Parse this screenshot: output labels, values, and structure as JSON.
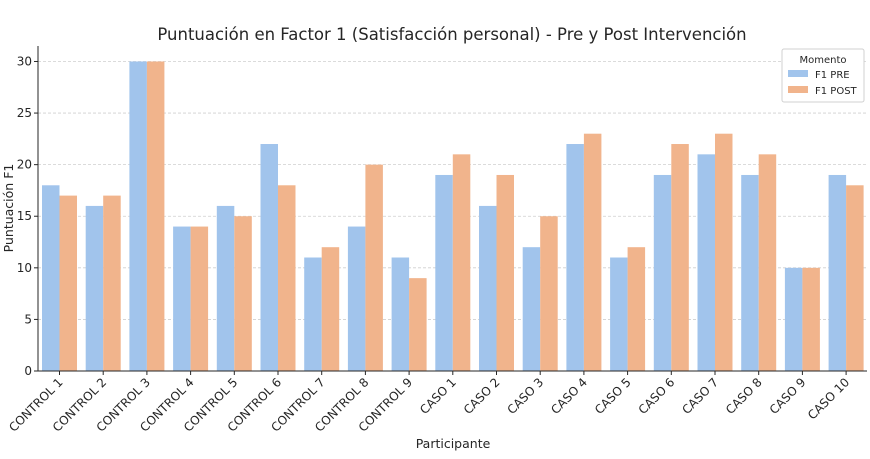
{
  "chart_data": {
    "type": "bar",
    "title": "Puntuación en Factor 1 (Satisfacción personal) - Pre y Post Intervención",
    "xlabel": "Participante",
    "ylabel": "Puntuación F1",
    "ylim": [
      0,
      31.5
    ],
    "yticks": [
      0,
      5,
      10,
      15,
      20,
      25,
      30
    ],
    "grid": true,
    "categories": [
      "CONTROL 1",
      "CONTROL 2",
      "CONTROL 3",
      "CONTROL 4",
      "CONTROL 5",
      "CONTROL 6",
      "CONTROL 7",
      "CONTROL 8",
      "CONTROL 9",
      "CASO 1",
      "CASO 2",
      "CASO 3",
      "CASO 4",
      "CASO 5",
      "CASO 6",
      "CASO 7",
      "CASO 8",
      "CASO 9",
      "CASO 10"
    ],
    "series": [
      {
        "name": "F1 PRE",
        "color": "#a1c4ec",
        "values": [
          18,
          16,
          30,
          14,
          16,
          22,
          11,
          14,
          11,
          19,
          16,
          12,
          22,
          11,
          19,
          21,
          19,
          10,
          19
        ]
      },
      {
        "name": "F1 POST",
        "color": "#f1b48c",
        "values": [
          17,
          17,
          30,
          14,
          15,
          18,
          12,
          20,
          9,
          21,
          19,
          15,
          23,
          12,
          22,
          23,
          21,
          10,
          18
        ]
      }
    ],
    "legend": {
      "title": "Momento",
      "placement": "top-right"
    }
  }
}
